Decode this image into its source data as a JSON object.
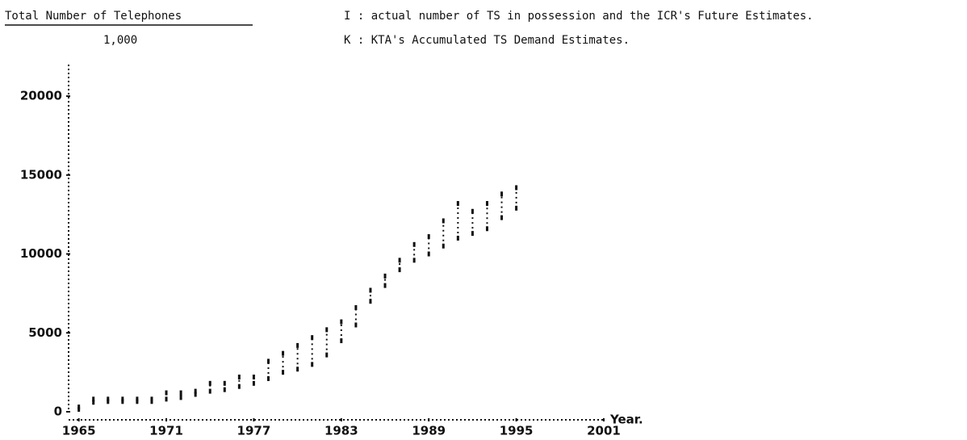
{
  "chart_data": {
    "type": "range-dots",
    "title": "Total Number of Telephones",
    "unit": "1,000",
    "x_label": "Year.",
    "x": [
      1965,
      1966,
      1967,
      1968,
      1969,
      1970,
      1971,
      1972,
      1973,
      1974,
      1975,
      1976,
      1977,
      1978,
      1979,
      1980,
      1981,
      1982,
      1983,
      1984,
      1985,
      1986,
      1987,
      1988,
      1989,
      1990,
      1991,
      1992,
      1993,
      1994,
      1995
    ],
    "series": [
      {
        "name": "I : actual number of TS in possession and the ICR's Future Estimates.",
        "color": "#111111",
        "values": [
          150,
          600,
          650,
          650,
          650,
          650,
          800,
          900,
          1100,
          1300,
          1400,
          1600,
          1800,
          2100,
          2500,
          2700,
          3000,
          3600,
          4500,
          5500,
          7000,
          8000,
          9000,
          9600,
          10000,
          10500,
          11000,
          11300,
          11600,
          12300,
          12900
        ]
      },
      {
        "name": "K : KTA's Accumulated TS Demand Estimates.",
        "color": "#111111",
        "values": [
          300,
          800,
          800,
          800,
          800,
          800,
          1200,
          1200,
          1300,
          1800,
          1800,
          2200,
          2200,
          3200,
          3700,
          4200,
          4700,
          5200,
          5700,
          6600,
          7700,
          8600,
          9600,
          10600,
          11100,
          12100,
          13200,
          12700,
          13200,
          13800,
          14200
        ]
      }
    ],
    "xlim": [
      1964.3,
      2001
    ],
    "xticks": [
      1965,
      1971,
      1977,
      1983,
      1989,
      1995,
      2001
    ],
    "ylim": [
      0,
      22000
    ],
    "yticks": [
      0,
      5000,
      10000,
      15000,
      20000
    ]
  }
}
